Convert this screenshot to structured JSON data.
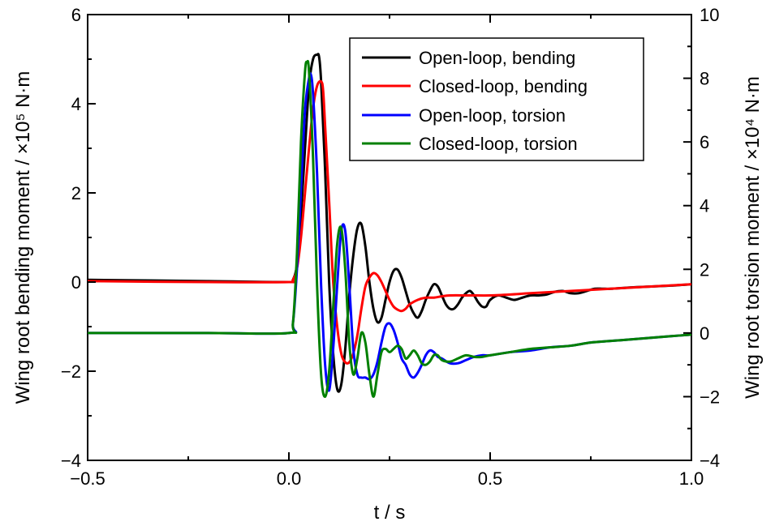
{
  "chart_data": {
    "type": "line",
    "xlabel": "t / s",
    "ylabel_left": "Wing root bending moment / ×10⁵ N·m",
    "ylabel_right": "Wing root torsion moment / ×10⁴ N·m",
    "xlim": [
      -0.5,
      1.0
    ],
    "ylim_left": [
      -4,
      6
    ],
    "ylim_right": [
      -4,
      10
    ],
    "x_ticks": [
      -0.5,
      0.0,
      0.5,
      1.0
    ],
    "x_tick_labels": [
      "−0.5",
      "0.0",
      "0.5",
      "1.0"
    ],
    "y_left_ticks": [
      -4,
      -2,
      0,
      2,
      4,
      6
    ],
    "y_left_tick_labels": [
      "−4",
      "−2",
      "0",
      "2",
      "4",
      "6"
    ],
    "y_right_ticks": [
      -4,
      -2,
      0,
      2,
      4,
      6,
      8,
      10
    ],
    "y_right_tick_labels": [
      "−4",
      "−2",
      "0",
      "2",
      "4",
      "6",
      "8",
      "10"
    ],
    "grid": false,
    "legend_position": "top-right",
    "series": [
      {
        "name": "Open-loop, bending",
        "color": "#000000",
        "axis": "left",
        "x": [
          -0.5,
          -0.2,
          0.0,
          0.01,
          0.02,
          0.03,
          0.04,
          0.05,
          0.06,
          0.07,
          0.075,
          0.08,
          0.09,
          0.1,
          0.11,
          0.12,
          0.13,
          0.14,
          0.15,
          0.16,
          0.17,
          0.18,
          0.19,
          0.2,
          0.21,
          0.22,
          0.23,
          0.24,
          0.25,
          0.26,
          0.27,
          0.28,
          0.29,
          0.3,
          0.31,
          0.32,
          0.33,
          0.34,
          0.35,
          0.36,
          0.37,
          0.38,
          0.39,
          0.4,
          0.41,
          0.42,
          0.43,
          0.44,
          0.45,
          0.46,
          0.47,
          0.48,
          0.49,
          0.5,
          0.52,
          0.54,
          0.56,
          0.58,
          0.6,
          0.62,
          0.64,
          0.66,
          0.68,
          0.7,
          0.72,
          0.74,
          0.76,
          0.78,
          0.8,
          0.85,
          0.9,
          0.95,
          1.0
        ],
        "y": [
          0.05,
          0.02,
          0.0,
          0.05,
          0.4,
          1.5,
          3.0,
          4.4,
          5.0,
          5.1,
          5.05,
          4.5,
          2.5,
          0.0,
          -1.6,
          -2.4,
          -2.3,
          -1.5,
          -0.3,
          0.6,
          1.2,
          1.3,
          0.8,
          0.0,
          -0.6,
          -0.9,
          -0.8,
          -0.4,
          0.0,
          0.25,
          0.28,
          0.1,
          -0.2,
          -0.5,
          -0.7,
          -0.8,
          -0.65,
          -0.4,
          -0.2,
          -0.05,
          -0.1,
          -0.3,
          -0.5,
          -0.6,
          -0.6,
          -0.5,
          -0.35,
          -0.25,
          -0.2,
          -0.3,
          -0.45,
          -0.55,
          -0.55,
          -0.4,
          -0.3,
          -0.35,
          -0.4,
          -0.35,
          -0.3,
          -0.3,
          -0.28,
          -0.22,
          -0.2,
          -0.25,
          -0.25,
          -0.2,
          -0.15,
          -0.15,
          -0.15,
          -0.12,
          -0.1,
          -0.08,
          -0.05
        ]
      },
      {
        "name": "Closed-loop, bending",
        "color": "#ff0000",
        "axis": "left",
        "x": [
          -0.5,
          -0.2,
          0.0,
          0.01,
          0.02,
          0.03,
          0.04,
          0.05,
          0.06,
          0.07,
          0.08,
          0.085,
          0.09,
          0.1,
          0.11,
          0.12,
          0.13,
          0.14,
          0.15,
          0.16,
          0.17,
          0.18,
          0.19,
          0.2,
          0.21,
          0.22,
          0.23,
          0.24,
          0.25,
          0.26,
          0.27,
          0.28,
          0.29,
          0.3,
          0.32,
          0.34,
          0.36,
          0.38,
          0.4,
          0.45,
          0.5,
          0.55,
          0.6,
          0.7,
          0.8,
          0.9,
          1.0
        ],
        "y": [
          0.02,
          0.0,
          0.0,
          0.05,
          0.3,
          1.0,
          2.0,
          3.0,
          3.9,
          4.4,
          4.5,
          4.3,
          3.5,
          1.8,
          0.0,
          -1.0,
          -1.6,
          -1.8,
          -1.8,
          -1.6,
          -1.2,
          -0.6,
          -0.1,
          0.1,
          0.2,
          0.15,
          0.0,
          -0.2,
          -0.4,
          -0.55,
          -0.62,
          -0.65,
          -0.6,
          -0.5,
          -0.4,
          -0.35,
          -0.35,
          -0.32,
          -0.3,
          -0.3,
          -0.3,
          -0.28,
          -0.25,
          -0.2,
          -0.15,
          -0.1,
          -0.05
        ]
      },
      {
        "name": "Open-loop, torsion",
        "color": "#0000ff",
        "axis": "right",
        "x": [
          -0.5,
          -0.2,
          0.0,
          0.01,
          0.02,
          0.03,
          0.04,
          0.05,
          0.055,
          0.06,
          0.07,
          0.08,
          0.09,
          0.1,
          0.11,
          0.12,
          0.13,
          0.14,
          0.15,
          0.16,
          0.17,
          0.18,
          0.19,
          0.2,
          0.21,
          0.22,
          0.23,
          0.24,
          0.25,
          0.26,
          0.27,
          0.28,
          0.29,
          0.3,
          0.31,
          0.32,
          0.33,
          0.34,
          0.35,
          0.36,
          0.37,
          0.38,
          0.4,
          0.42,
          0.44,
          0.46,
          0.48,
          0.5,
          0.55,
          0.6,
          0.65,
          0.7,
          0.75,
          0.8,
          0.85,
          0.9,
          0.95,
          1.0
        ],
        "y": [
          0.0,
          0.0,
          0.0,
          0.3,
          2.0,
          4.5,
          7.0,
          8.0,
          8.1,
          7.5,
          5.0,
          1.5,
          -1.0,
          -1.8,
          -0.5,
          1.5,
          3.2,
          3.2,
          1.5,
          -0.5,
          -1.3,
          -1.4,
          -1.4,
          -1.45,
          -1.3,
          -0.9,
          -0.3,
          0.2,
          0.3,
          0.1,
          -0.3,
          -0.8,
          -1.0,
          -1.3,
          -1.4,
          -1.25,
          -1.0,
          -0.7,
          -0.55,
          -0.6,
          -0.75,
          -0.8,
          -0.95,
          -0.95,
          -0.85,
          -0.75,
          -0.7,
          -0.7,
          -0.6,
          -0.55,
          -0.45,
          -0.4,
          -0.3,
          -0.25,
          -0.2,
          -0.15,
          -0.1,
          -0.05
        ]
      },
      {
        "name": "Closed-loop, torsion",
        "color": "#008000",
        "axis": "right",
        "x": [
          -0.5,
          -0.2,
          0.0,
          0.01,
          0.02,
          0.03,
          0.04,
          0.045,
          0.05,
          0.06,
          0.07,
          0.08,
          0.09,
          0.1,
          0.11,
          0.12,
          0.13,
          0.14,
          0.15,
          0.16,
          0.17,
          0.18,
          0.19,
          0.2,
          0.21,
          0.22,
          0.23,
          0.24,
          0.25,
          0.26,
          0.27,
          0.28,
          0.29,
          0.3,
          0.31,
          0.32,
          0.33,
          0.34,
          0.35,
          0.36,
          0.37,
          0.38,
          0.4,
          0.42,
          0.44,
          0.46,
          0.48,
          0.5,
          0.55,
          0.6,
          0.65,
          0.7,
          0.75,
          0.8,
          0.85,
          0.9,
          0.95,
          1.0
        ],
        "y": [
          0.0,
          0.0,
          0.0,
          0.3,
          2.5,
          6.0,
          8.2,
          8.5,
          8.2,
          5.5,
          1.5,
          -1.3,
          -2.0,
          -1.2,
          0.8,
          2.8,
          3.3,
          2.0,
          -0.3,
          -1.3,
          -0.8,
          0.0,
          -0.3,
          -1.3,
          -2.0,
          -1.3,
          -0.6,
          -0.5,
          -0.6,
          -0.5,
          -0.4,
          -0.5,
          -0.8,
          -0.7,
          -0.55,
          -0.7,
          -0.95,
          -1.0,
          -0.9,
          -0.7,
          -0.7,
          -0.85,
          -0.9,
          -0.8,
          -0.7,
          -0.75,
          -0.75,
          -0.7,
          -0.6,
          -0.5,
          -0.45,
          -0.4,
          -0.3,
          -0.25,
          -0.2,
          -0.15,
          -0.1,
          -0.05
        ]
      }
    ]
  }
}
